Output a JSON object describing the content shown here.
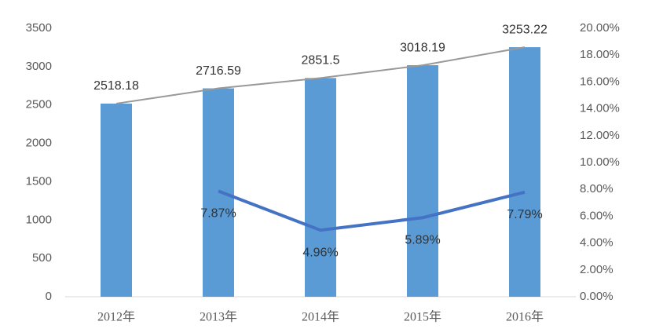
{
  "chart_data": {
    "type": "bar",
    "categories": [
      "2012年",
      "2013年",
      "2014年",
      "2015年",
      "2016年"
    ],
    "series": [
      {
        "type": "bar",
        "color": "#5b9bd5",
        "line_color": "#999999",
        "values": [
          2518.18,
          2716.59,
          2851.5,
          3018.19,
          3253.22
        ]
      },
      {
        "type": "line",
        "axis": "y2",
        "color": "#4472c4",
        "values": [
          null,
          7.87,
          4.96,
          5.89,
          7.79
        ],
        "value_labels": [
          null,
          "7.87%",
          "4.96%",
          "5.89%",
          "7.79%"
        ]
      }
    ],
    "ylim": [
      0,
      3500
    ],
    "yticks": [
      0,
      500,
      1000,
      1500,
      2000,
      2500,
      3000,
      3500
    ],
    "y2lim": [
      0,
      20
    ],
    "y2ticks": [
      {
        "value": 0,
        "label": "0.00%"
      },
      {
        "value": 2,
        "label": "2.00%"
      },
      {
        "value": 4,
        "label": "4.00%"
      },
      {
        "value": 6,
        "label": "6.00%"
      },
      {
        "value": 8,
        "label": "8.00%"
      },
      {
        "value": 10,
        "label": "10.00%"
      },
      {
        "value": 12,
        "label": "12.00%"
      },
      {
        "value": 14,
        "label": "14.00%"
      },
      {
        "value": 16,
        "label": "16.00%"
      },
      {
        "value": 18,
        "label": "18.00%"
      },
      {
        "value": 20,
        "label": "20.00%"
      }
    ],
    "grid": false
  }
}
